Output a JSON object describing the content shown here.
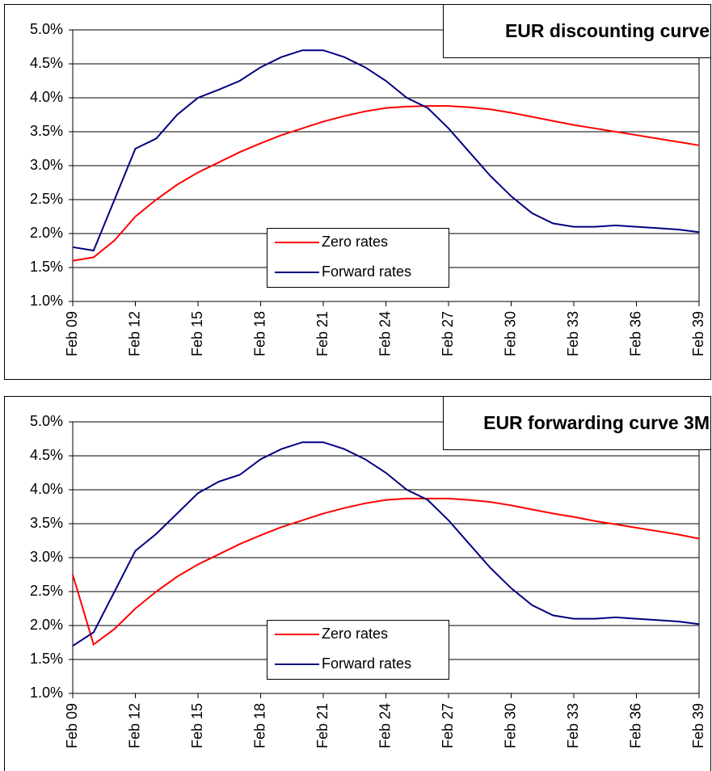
{
  "chart_data": [
    {
      "type": "line",
      "title": "EUR discounting curve",
      "categories": [
        "Feb 09",
        null,
        null,
        "Feb 12",
        null,
        null,
        "Feb 15",
        null,
        null,
        "Feb 18",
        null,
        null,
        "Feb 21",
        null,
        null,
        "Feb 24",
        null,
        null,
        "Feb 27",
        null,
        null,
        "Feb 30",
        null,
        null,
        "Feb 33",
        null,
        null,
        "Feb 36",
        null,
        null,
        "Feb 39"
      ],
      "series": [
        {
          "name": "Zero rates",
          "color": "#ff0000",
          "values": [
            1.6,
            1.65,
            1.9,
            2.25,
            2.5,
            2.72,
            2.9,
            3.05,
            3.2,
            3.33,
            3.45,
            3.55,
            3.65,
            3.73,
            3.8,
            3.85,
            3.87,
            3.88,
            3.88,
            3.86,
            3.83,
            3.78,
            3.72,
            3.66,
            3.6,
            3.55,
            3.5,
            3.45,
            3.4,
            3.35,
            3.3
          ]
        },
        {
          "name": "Forward rates",
          "color": "#000080",
          "values": [
            1.8,
            1.75,
            2.5,
            3.25,
            3.4,
            3.75,
            4.0,
            4.12,
            4.25,
            4.45,
            4.6,
            4.7,
            4.7,
            4.6,
            4.45,
            4.25,
            4.0,
            3.85,
            3.55,
            3.2,
            2.85,
            2.55,
            2.3,
            2.15,
            2.1,
            2.1,
            2.12,
            2.1,
            2.08,
            2.06,
            2.02
          ]
        }
      ],
      "ylim": [
        1,
        5
      ],
      "yticks": [
        {
          "value": 1,
          "label": "1.0%"
        },
        {
          "value": 1.5,
          "label": "1.5%"
        },
        {
          "value": 2,
          "label": "2.0%"
        },
        {
          "value": 2.5,
          "label": "2.5%"
        },
        {
          "value": 3,
          "label": "3.0%"
        },
        {
          "value": 3.5,
          "label": "3.5%"
        },
        {
          "value": 4,
          "label": "4.0%"
        },
        {
          "value": 4.5,
          "label": "4.5%"
        },
        {
          "value": 5,
          "label": "5.0%"
        }
      ],
      "grid": true
    },
    {
      "type": "line",
      "title": "EUR forwarding curve 3M",
      "categories": [
        "Feb 09",
        null,
        null,
        "Feb 12",
        null,
        null,
        "Feb 15",
        null,
        null,
        "Feb 18",
        null,
        null,
        "Feb 21",
        null,
        null,
        "Feb 24",
        null,
        null,
        "Feb 27",
        null,
        null,
        "Feb 30",
        null,
        null,
        "Feb 33",
        null,
        null,
        "Feb 36",
        null,
        null,
        "Feb 39"
      ],
      "series": [
        {
          "name": "Zero rates",
          "color": "#ff0000",
          "values": [
            2.75,
            1.72,
            1.95,
            2.25,
            2.5,
            2.72,
            2.9,
            3.05,
            3.2,
            3.33,
            3.45,
            3.55,
            3.65,
            3.73,
            3.8,
            3.85,
            3.87,
            3.87,
            3.87,
            3.85,
            3.82,
            3.77,
            3.71,
            3.65,
            3.6,
            3.54,
            3.49,
            3.44,
            3.39,
            3.34,
            3.28
          ]
        },
        {
          "name": "Forward rates",
          "color": "#000080",
          "values": [
            1.7,
            1.9,
            2.5,
            3.1,
            3.35,
            3.65,
            3.95,
            4.12,
            4.22,
            4.45,
            4.6,
            4.7,
            4.7,
            4.6,
            4.45,
            4.25,
            4.0,
            3.85,
            3.55,
            3.2,
            2.85,
            2.55,
            2.3,
            2.15,
            2.1,
            2.1,
            2.12,
            2.1,
            2.08,
            2.06,
            2.02
          ]
        }
      ],
      "ylim": [
        1,
        5
      ],
      "yticks": [
        {
          "value": 1,
          "label": "1.0%"
        },
        {
          "value": 1.5,
          "label": "1.5%"
        },
        {
          "value": 2,
          "label": "2.0%"
        },
        {
          "value": 2.5,
          "label": "2.5%"
        },
        {
          "value": 3,
          "label": "3.0%"
        },
        {
          "value": 3.5,
          "label": "3.5%"
        },
        {
          "value": 4,
          "label": "4.0%"
        },
        {
          "value": 4.5,
          "label": "4.5%"
        },
        {
          "value": 5,
          "label": "5.0%"
        }
      ],
      "grid": true
    }
  ]
}
